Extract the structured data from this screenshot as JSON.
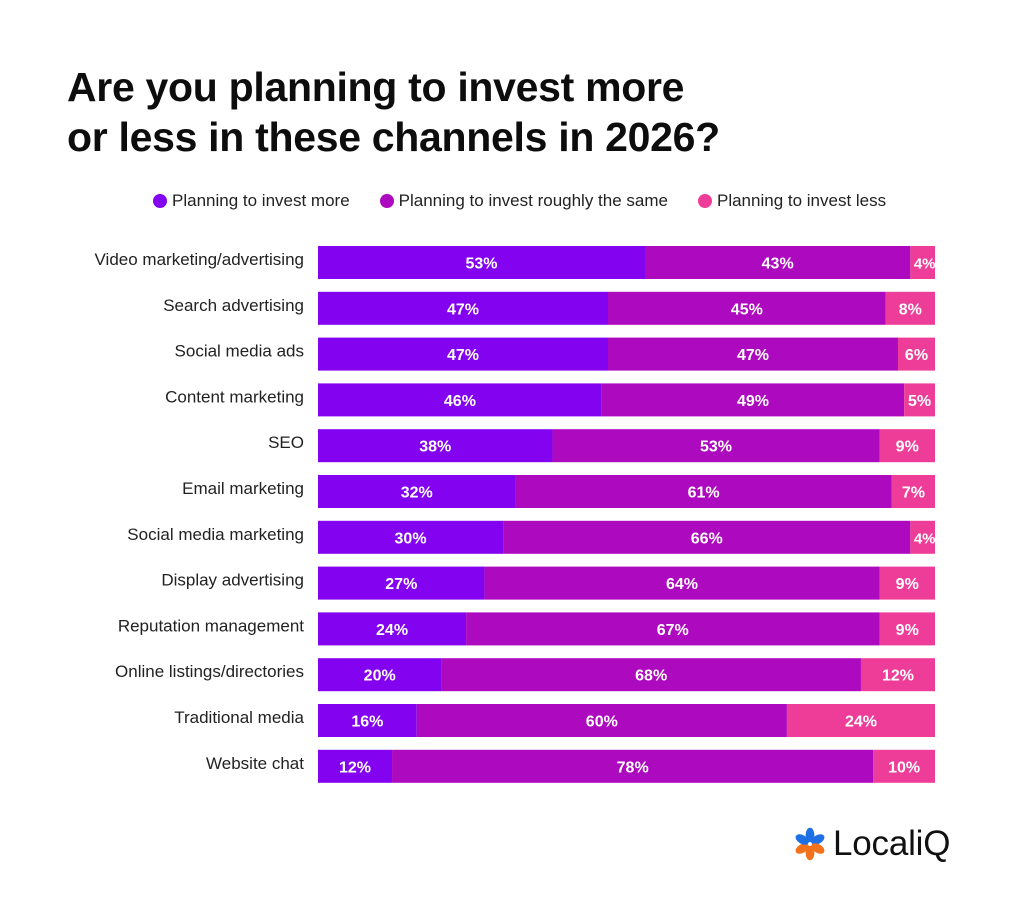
{
  "title": {
    "line1": "Are you planning to invest more",
    "line2": "or less in these channels in 2026?"
  },
  "legend": [
    {
      "label": "Planning to invest more",
      "color": "#8302f0"
    },
    {
      "label": "Planning to invest roughly the same",
      "color": "#ad09bf"
    },
    {
      "label": "Planning to invest less",
      "color": "#ee3d98"
    }
  ],
  "brand": {
    "name": "LocaliQ",
    "icon": "localiq-asterisk-logo-icon",
    "icon_colors": [
      "#1f6fe5",
      "#f2711c"
    ]
  },
  "chart_data": {
    "type": "bar",
    "orientation": "horizontal",
    "stacked": true,
    "title": "Are you planning to invest more or less in these channels in 2026?",
    "xlim": [
      0,
      100
    ],
    "value_unit": "%",
    "categories": [
      "Video marketing/advertising",
      "Search advertising",
      "Social media ads",
      "Content marketing",
      "SEO",
      "Email marketing",
      "Social media marketing",
      "Display advertising",
      "Reputation management",
      "Online listings/directories",
      "Traditional media",
      "Website chat"
    ],
    "series": [
      {
        "name": "Planning to invest more",
        "color": "#8302f0",
        "values": [
          53,
          47,
          47,
          46,
          38,
          32,
          30,
          27,
          24,
          20,
          16,
          12
        ]
      },
      {
        "name": "Planning to invest roughly the same",
        "color": "#ad09bf",
        "values": [
          43,
          45,
          47,
          49,
          53,
          61,
          66,
          64,
          67,
          68,
          60,
          78
        ]
      },
      {
        "name": "Planning to invest less",
        "color": "#ee3d98",
        "values": [
          4,
          8,
          6,
          5,
          9,
          7,
          4,
          9,
          9,
          12,
          24,
          10
        ]
      }
    ],
    "legend_position": "top"
  }
}
